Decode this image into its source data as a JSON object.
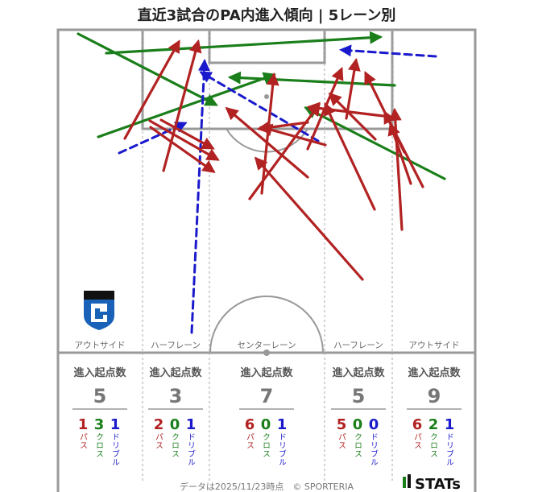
{
  "title": "直近3試合のPA内進入傾向 | 5レーン別",
  "lane_names": [
    "アウトサイド",
    "ハーフレーン",
    "センターレーン",
    "ハーフレーン",
    "アウトサイド"
  ],
  "stat_header": "進入起点数",
  "type_labels": {
    "pass": "パス",
    "cross": "クロス",
    "dribble": "ドリブル"
  },
  "colors": {
    "pass": "#b22222",
    "cross": "#1a7f1a",
    "dribble": "#1a1acc",
    "field_line": "#999999",
    "lane_line": "#aaaaaa"
  },
  "footer": "データは2025/11/23時点　© SPORTERIA",
  "brand": "STATs",
  "logo_icon": "club-crest-icon",
  "chart_data": {
    "type": "arrow-map",
    "lanes": [
      {
        "name": "アウトサイド",
        "total": 5,
        "pass": 1,
        "cross": 3,
        "dribble": 1
      },
      {
        "name": "ハーフレーン",
        "total": 3,
        "pass": 2,
        "cross": 0,
        "dribble": 1
      },
      {
        "name": "センターレーン",
        "total": 7,
        "pass": 6,
        "cross": 0,
        "dribble": 1
      },
      {
        "name": "ハーフレーン",
        "total": 5,
        "pass": 5,
        "cross": 0,
        "dribble": 0
      },
      {
        "name": "アウトサイド",
        "total": 9,
        "pass": 6,
        "cross": 2,
        "dribble": 1
      }
    ]
  }
}
